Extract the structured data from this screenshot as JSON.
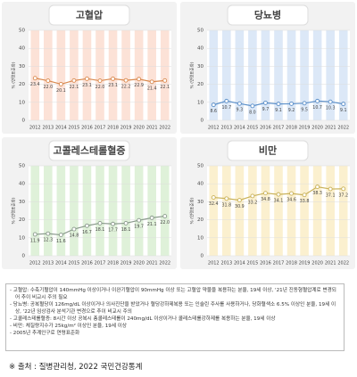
{
  "chart_data": [
    {
      "type": "line",
      "title": "고혈압",
      "ylabel": "% (연령표준화)",
      "categories": [
        "2012",
        "2013",
        "2014",
        "2015",
        "2016",
        "2017",
        "2018",
        "2019",
        "2020",
        "2021",
        "2022"
      ],
      "values": [
        23.4,
        22.0,
        20.1,
        22.1,
        23.1,
        22.0,
        23.1,
        22.2,
        22.9,
        21.4,
        22.1
      ],
      "value_labels": [
        "23.4",
        "22.0",
        "20.1",
        "22.1",
        "23.1",
        "22.0",
        "23.1",
        "22.2",
        "22.9",
        "21.4",
        "22.1"
      ],
      "color": "#d9894e",
      "band_color": "#fce2d7",
      "ylim": [
        0,
        50
      ],
      "yticks": [
        0,
        10,
        20,
        30,
        40,
        50
      ],
      "grid": true
    },
    {
      "type": "line",
      "title": "당뇨병",
      "ylabel": "% (연령표준화)",
      "categories": [
        "2012",
        "2013",
        "2014",
        "2015",
        "2016",
        "2017",
        "2018",
        "2019",
        "2020",
        "2021",
        "2022"
      ],
      "values": [
        8.6,
        10.7,
        9.3,
        8.0,
        9.7,
        9.1,
        9.2,
        9.5,
        10.7,
        10.3,
        9.1
      ],
      "value_labels": [
        "8.6",
        "10.7",
        "9.3",
        "8.0",
        "9.7",
        "9.1",
        "9.2",
        "9.5",
        "10.7",
        "10.3",
        "9.1"
      ],
      "color": "#5b8fc9",
      "band_color": "#dce8f7",
      "ylim": [
        0,
        50
      ],
      "yticks": [
        0,
        10,
        20,
        30,
        40,
        50
      ],
      "grid": true
    },
    {
      "type": "line",
      "title": "고콜레스테롤혈증",
      "ylabel": "% (연령표준화)",
      "categories": [
        "2012",
        "2013",
        "2014",
        "2015",
        "2016",
        "2017",
        "2018",
        "2019",
        "2020",
        "2021",
        "2022"
      ],
      "values": [
        11.9,
        12.3,
        11.6,
        14.8,
        16.7,
        18.1,
        17.7,
        18.1,
        19.7,
        21.1,
        22.0
      ],
      "value_labels": [
        "11.9",
        "12.3",
        "11.6",
        "14.8",
        "16.7",
        "18.1",
        "17.7",
        "18.1",
        "19.7",
        "21.1",
        "22.0"
      ],
      "color": "#8a9a8c",
      "band_color": "#dff1d9",
      "ylim": [
        0,
        50
      ],
      "yticks": [
        0,
        10,
        20,
        30,
        40,
        50
      ],
      "grid": true
    },
    {
      "type": "line",
      "title": "비만",
      "ylabel": "% (연령표준화)",
      "categories": [
        "2012",
        "2013",
        "2014",
        "2015",
        "2016",
        "2017",
        "2018",
        "2019",
        "2020",
        "2021",
        "2022"
      ],
      "values": [
        32.4,
        31.8,
        30.9,
        33.2,
        34.8,
        34.1,
        34.6,
        33.8,
        38.3,
        37.1,
        37.2
      ],
      "value_labels": [
        "32.4",
        "31.8",
        "30.9",
        "33.2",
        "34.8",
        "34.1",
        "34.6",
        "33.8",
        "38.3",
        "37.1",
        "37.2"
      ],
      "color": "#c9b25a",
      "band_color": "#fbf0cf",
      "ylim": [
        0,
        50
      ],
      "yticks": [
        0,
        10,
        20,
        30,
        40,
        50
      ],
      "grid": true
    }
  ],
  "notes": [
    "고혈압: 수축기혈압이 140mmHg 이상이거나 이완기혈압이 90mmHg 이상 또는 고혈압 약물을 복용하는 분율, 19세 이상, '21년 진동형혈압계로 변경되어 추이 비교시 주의 필요",
    "당뇨병: 공복혈당이 126mg/dL 이상이거나 의사진단을 받았거나 혈당강하제복용 또는 인슐린 주사를 사용하거나, 당화혈색소 6.5% 이상인 분율, 19세 이상, '22년 임상검사 분석기관 변경으로 추이 비교시 주의",
    "고콜레스테롤혈증: 8시간 이상 공복시 총콜레스테롤이 240mg/dL 이상이거나 콜레스테롤강하제를 복용하는 분율, 19세 이상",
    "비만: 체질량지수가 25kg/m² 이상인 분율, 19세 이상",
    "2005년 추계인구로 연령표준화"
  ],
  "source": "※ 출처 : 질병관리청, 2022 국민건강통계"
}
